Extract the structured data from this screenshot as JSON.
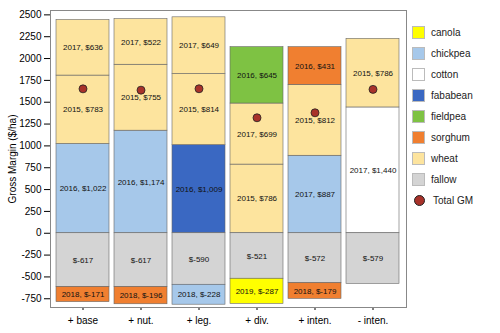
{
  "chart_data": {
    "type": "bar",
    "stacked": true,
    "data_labels": true,
    "grid": false,
    "legend": "right",
    "y_label": "Gross Margin ($/ha)",
    "categories": [
      "+ base",
      "+ nut.",
      "+ leg.",
      "+ div.",
      "+ inten.",
      "- inten."
    ],
    "ylim": [
      -850,
      2550
    ],
    "yticks": [
      -750,
      -500,
      -250,
      0,
      250,
      500,
      750,
      1000,
      1250,
      1500,
      1750,
      2000,
      2250,
      2500
    ],
    "series": [
      {
        "name": "canola",
        "color": "#ffff00"
      },
      {
        "name": "chickpea",
        "color": "#a6c8ea"
      },
      {
        "name": "cotton",
        "color": "#ffffff"
      },
      {
        "name": "fababean",
        "color": "#3a68c2"
      },
      {
        "name": "fieldpea",
        "color": "#7ec243"
      },
      {
        "name": "sorghum",
        "color": "#f07f30"
      },
      {
        "name": "wheat",
        "color": "#fde49e"
      },
      {
        "name": "fallow",
        "color": "#d4d4d4"
      }
    ],
    "segments": [
      {
        "category": "+ base",
        "crop": "chickpea",
        "value": 1022,
        "label": "2016, $1,022"
      },
      {
        "category": "+ base",
        "crop": "wheat",
        "value": 783,
        "label": "2015, $783"
      },
      {
        "category": "+ base",
        "crop": "wheat",
        "value": 636,
        "label": "2017, $636"
      },
      {
        "category": "+ base",
        "crop": "fallow",
        "value": -617,
        "label": "$-617"
      },
      {
        "category": "+ base",
        "crop": "sorghum",
        "value": -171,
        "label": "2018, $-171"
      },
      {
        "category": "+ nut.",
        "crop": "chickpea",
        "value": 1174,
        "label": "2016, $1,174"
      },
      {
        "category": "+ nut.",
        "crop": "wheat",
        "value": 755,
        "label": "2015, $755"
      },
      {
        "category": "+ nut.",
        "crop": "wheat",
        "value": 522,
        "label": "2017, $522"
      },
      {
        "category": "+ nut.",
        "crop": "fallow",
        "value": -617,
        "label": "$-617"
      },
      {
        "category": "+ nut.",
        "crop": "sorghum",
        "value": -196,
        "label": "2018, $-196"
      },
      {
        "category": "+ leg.",
        "crop": "fababean",
        "value": 1009,
        "label": "2016, $1,009"
      },
      {
        "category": "+ leg.",
        "crop": "wheat",
        "value": 814,
        "label": "2015, $814"
      },
      {
        "category": "+ leg.",
        "crop": "wheat",
        "value": 649,
        "label": "2017, $649"
      },
      {
        "category": "+ leg.",
        "crop": "fallow",
        "value": -590,
        "label": "$-590"
      },
      {
        "category": "+ leg.",
        "crop": "chickpea",
        "value": -228,
        "label": "2018, $-228"
      },
      {
        "category": "+ div.",
        "crop": "wheat",
        "value": 786,
        "label": "2015, $786"
      },
      {
        "category": "+ div.",
        "crop": "wheat",
        "value": 699,
        "label": "2017, $699"
      },
      {
        "category": "+ div.",
        "crop": "fieldpea",
        "value": 645,
        "label": "2016, $645"
      },
      {
        "category": "+ div.",
        "crop": "fallow",
        "value": -521,
        "label": "$-521"
      },
      {
        "category": "+ div.",
        "crop": "canola",
        "value": -287,
        "label": "2019, $-287"
      },
      {
        "category": "+ inten.",
        "crop": "chickpea",
        "value": 887,
        "label": "2017, $887"
      },
      {
        "category": "+ inten.",
        "crop": "wheat",
        "value": 812,
        "label": "2015, $812"
      },
      {
        "category": "+ inten.",
        "crop": "sorghum",
        "value": 431,
        "label": "2016, $431"
      },
      {
        "category": "+ inten.",
        "crop": "fallow",
        "value": -572,
        "label": "$-572"
      },
      {
        "category": "+ inten.",
        "crop": "sorghum",
        "value": -179,
        "label": "2018, $-179"
      },
      {
        "category": "- inten.",
        "crop": "cotton",
        "value": 1440,
        "label": "2017, $1,440"
      },
      {
        "category": "- inten.",
        "crop": "wheat",
        "value": 786,
        "label": "2015, $786"
      },
      {
        "category": "- inten.",
        "crop": "fallow",
        "value": -579,
        "label": "$-579"
      }
    ],
    "total": {
      "name": "Total GM",
      "color": "#a8322a",
      "marker": "circle",
      "values": [
        1653,
        1638,
        1654,
        1322,
        1379,
        1647
      ]
    }
  }
}
